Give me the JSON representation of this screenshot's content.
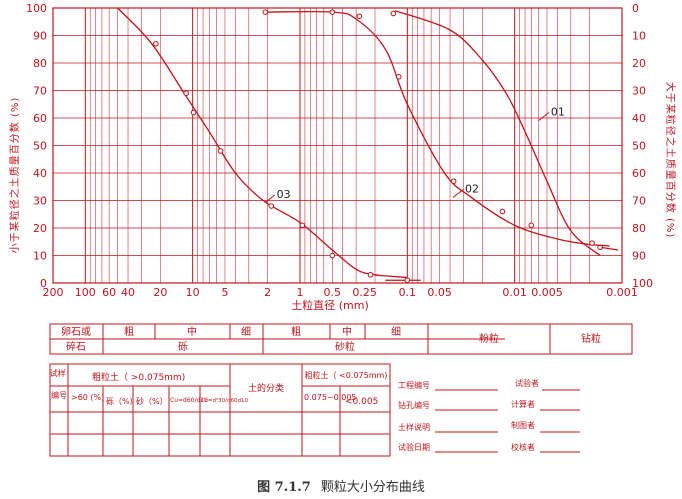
{
  "chart_data": {
    "type": "line",
    "x_scale": "log",
    "x_reversed": true,
    "xlim": [
      200,
      0.001
    ],
    "ylim": [
      0,
      100
    ],
    "y_ticks": [
      "0",
      "10",
      "20",
      "30",
      "40",
      "50",
      "60",
      "70",
      "80",
      "90",
      "100"
    ],
    "y_right_ticks": [
      "100",
      "90",
      "80",
      "70",
      "60",
      "50",
      "40",
      "30",
      "20",
      "10",
      "0"
    ],
    "x_ticks": [
      {
        "v": 200,
        "label": "200"
      },
      {
        "v": 100,
        "label": "100"
      },
      {
        "v": 60,
        "label": "60"
      },
      {
        "v": 40,
        "label": "40"
      },
      {
        "v": 20,
        "label": "20"
      },
      {
        "v": 10,
        "label": "10"
      },
      {
        "v": 5,
        "label": "5"
      },
      {
        "v": 2,
        "label": "2"
      },
      {
        "v": 1,
        "label": "1"
      },
      {
        "v": 0.5,
        "label": "0.5"
      },
      {
        "v": 0.25,
        "label": "0.25"
      },
      {
        "v": 0.1,
        "label": "0.1"
      },
      {
        "v": 0.05,
        "label": "0.05"
      },
      {
        "v": 0.01,
        "label": "0.01"
      },
      {
        "v": 0.005,
        "label": "0.005"
      },
      {
        "v": 0.001,
        "label": "0.001"
      }
    ],
    "xlabel": "土粒直径 (mm)",
    "ylabel": "小于某粒径之土质量百分数 (%)",
    "ylabel_right": "大于某粒径之土质量百分数 (%)",
    "grid": true,
    "series": [
      {
        "name": "01",
        "label_at": [
          0.0046,
          62
        ],
        "points": [
          [
            0.13,
            99
          ],
          [
            0.04,
            92
          ],
          [
            0.02,
            81
          ],
          [
            0.012,
            69
          ],
          [
            0.008,
            55
          ],
          [
            0.005,
            37
          ],
          [
            0.003,
            19
          ],
          [
            0.0016,
            10
          ]
        ],
        "markers": [
          [
            0.135,
            98
          ],
          [
            0.0016,
            13
          ]
        ],
        "line_from": [
          0.0016,
          13
        ]
      },
      {
        "name": "02",
        "label_at": [
          0.029,
          34
        ],
        "points": [
          [
            2.2,
            98.5
          ],
          [
            0.5,
            98.5
          ],
          [
            0.3,
            96
          ],
          [
            0.16,
            85
          ],
          [
            0.1,
            65
          ],
          [
            0.045,
            40
          ],
          [
            0.025,
            31
          ],
          [
            0.01,
            21
          ],
          [
            0.004,
            16
          ],
          [
            0.002,
            14
          ],
          [
            0.0013,
            13.5
          ]
        ],
        "markers": [
          [
            2.1,
            98.5
          ],
          [
            0.5,
            98.5
          ],
          [
            0.28,
            97
          ],
          [
            0.12,
            75
          ],
          [
            0.037,
            37
          ],
          [
            0.013,
            26
          ],
          [
            0.007,
            21
          ],
          [
            0.0019,
            14.5
          ]
        ]
      },
      {
        "name": "03",
        "label_at": [
          1.65,
          32
        ],
        "points": [
          [
            50,
            100
          ],
          [
            24,
            87
          ],
          [
            12,
            69
          ],
          [
            7,
            55
          ],
          [
            4,
            40
          ],
          [
            2.2,
            30
          ],
          [
            1.0,
            22
          ],
          [
            0.5,
            12
          ],
          [
            0.3,
            5
          ],
          [
            0.2,
            3
          ],
          [
            0.1,
            2
          ]
        ],
        "markers": [
          [
            22,
            87
          ],
          [
            11.5,
            69
          ],
          [
            9.8,
            62
          ],
          [
            5.5,
            48
          ],
          [
            1.85,
            28
          ],
          [
            0.95,
            21
          ],
          [
            0.5,
            10
          ],
          [
            0.22,
            3
          ],
          [
            0.1,
            1
          ]
        ],
        "line_to": [
          0.1,
          1
        ]
      }
    ]
  },
  "soil_bands": {
    "labels_top": [
      "卵石或",
      "粗",
      "中",
      "细",
      "粗",
      "中",
      "细",
      "粉粒",
      "钻粒"
    ],
    "labels_bottom": [
      "碎石",
      "砾",
      "砂粒"
    ]
  },
  "result_table": {
    "col_sample": "试样编号",
    "col_coarse": "粗粒土（ >0.075mm)",
    "col_gt60": ">60 (%)",
    "col_gravel": "砾（%）",
    "col_sand": "砂（%）",
    "col_cu": "Cu=d60/d10",
    "col_cc": "Cc=d²30/d60d10",
    "col_class": "土的分类",
    "col_fine": "粗粒土（ <0.075mm)",
    "col_fine_a": "0.075~0.005",
    "col_fine_b": "<0.005"
  },
  "signoff": {
    "project_no": "工程编号",
    "borehole_no": "钻孔编号",
    "sample_desc": "土样说明",
    "test_date": "试验日期",
    "tester": "试验者",
    "calculator": "计算者",
    "drafter": "制图者",
    "checker": "校核者"
  },
  "caption": {
    "figure_no": "图 7.1.7",
    "title": "颗粒大小分布曲线"
  }
}
